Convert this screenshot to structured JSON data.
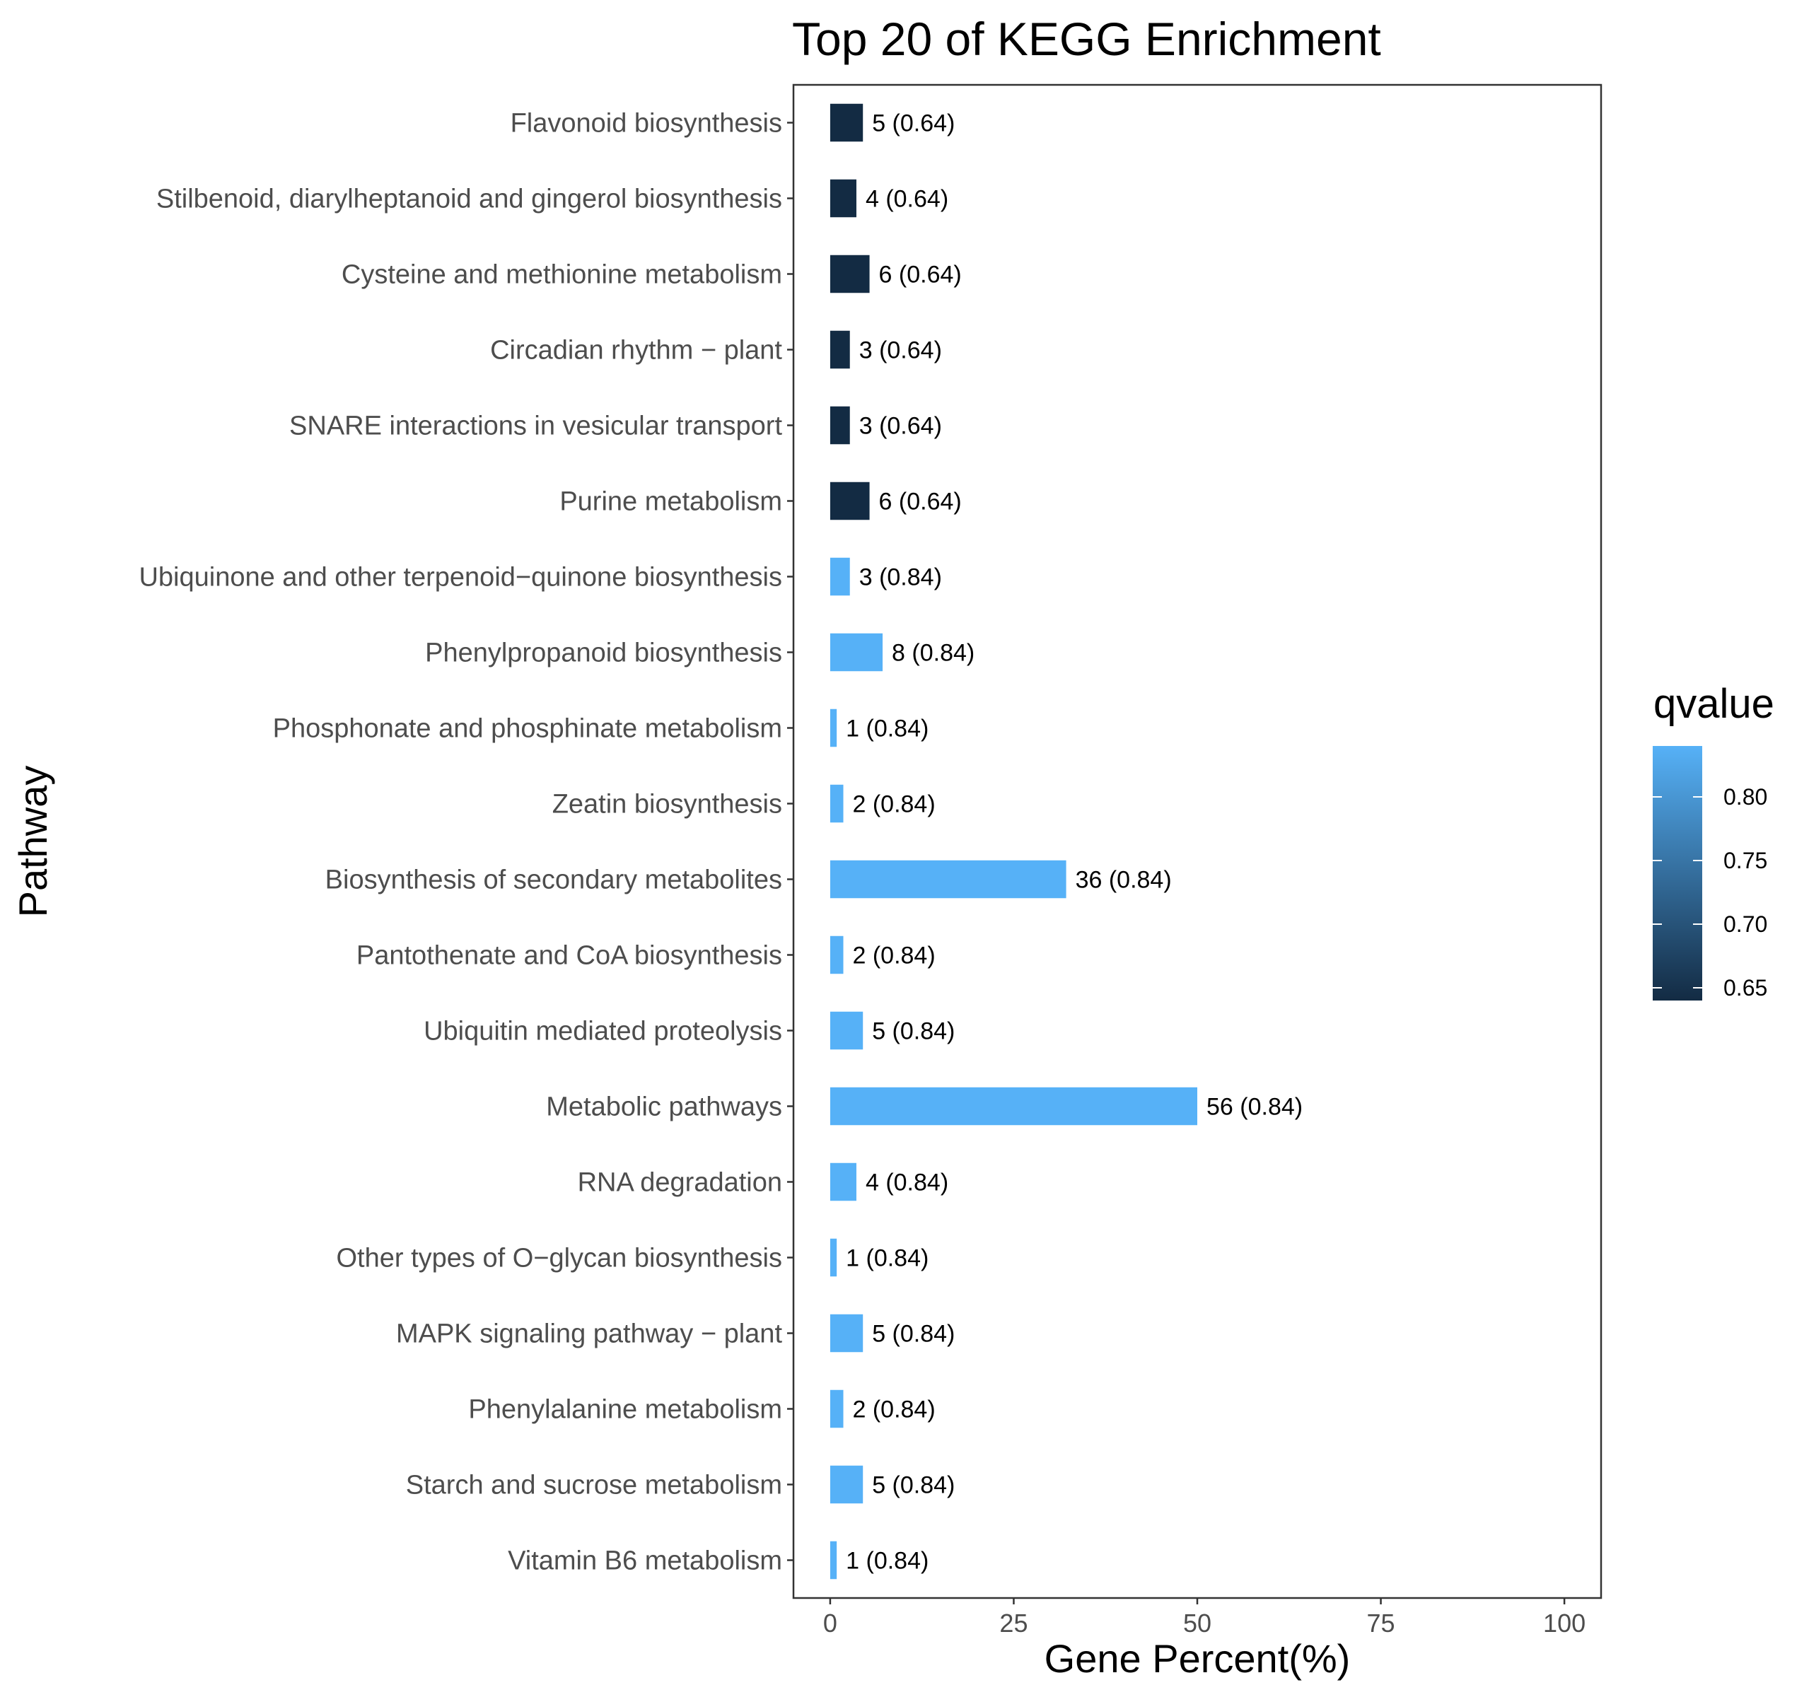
{
  "chart_data": {
    "type": "bar",
    "orientation": "horizontal",
    "title": "Top 20 of KEGG Enrichment",
    "xlabel": "Gene Percent(%)",
    "ylabel": "Pathway",
    "xlim": [
      -5,
      105
    ],
    "xticks": [
      0,
      25,
      50,
      75,
      100
    ],
    "grid": false,
    "categories": [
      "Flavonoid biosynthesis",
      "Stilbenoid, diarylheptanoid and gingerol biosynthesis",
      "Cysteine and methionine metabolism",
      "Circadian rhythm − plant",
      "SNARE interactions in vesicular transport",
      "Purine metabolism",
      "Ubiquinone and other terpenoid−quinone biosynthesis",
      "Phenylpropanoid biosynthesis",
      "Phosphonate and phosphinate metabolism",
      "Zeatin biosynthesis",
      "Biosynthesis of secondary metabolites",
      "Pantothenate and CoA biosynthesis",
      "Ubiquitin mediated proteolysis",
      "Metabolic pathways",
      "RNA degradation",
      "Other types of O−glycan biosynthesis",
      "MAPK signaling pathway − plant",
      "Phenylalanine metabolism",
      "Starch and sucrose metabolism",
      "Vitamin B6 metabolism"
    ],
    "values": [
      4.46,
      3.57,
      5.36,
      2.68,
      2.68,
      5.36,
      2.68,
      7.14,
      0.89,
      1.79,
      32.14,
      1.79,
      4.46,
      50.0,
      3.57,
      0.89,
      4.46,
      1.79,
      4.46,
      0.89
    ],
    "qvalues": [
      0.64,
      0.64,
      0.64,
      0.64,
      0.64,
      0.64,
      0.84,
      0.84,
      0.84,
      0.84,
      0.84,
      0.84,
      0.84,
      0.84,
      0.84,
      0.84,
      0.84,
      0.84,
      0.84,
      0.84
    ],
    "bar_labels": [
      "5 (0.64)",
      "4 (0.64)",
      "6 (0.64)",
      "3 (0.64)",
      "3 (0.64)",
      "6 (0.64)",
      "3 (0.84)",
      "8 (0.84)",
      "1 (0.84)",
      "2 (0.84)",
      "36 (0.84)",
      "2 (0.84)",
      "5 (0.84)",
      "56 (0.84)",
      "4 (0.84)",
      "1 (0.84)",
      "5 (0.84)",
      "2 (0.84)",
      "5 (0.84)",
      "1 (0.84)"
    ],
    "legend": {
      "title": "qvalue",
      "placement": "right",
      "range": [
        0.64,
        0.84
      ],
      "ticks": [
        0.65,
        0.7,
        0.75,
        0.8
      ],
      "tick_labels": [
        "0.65",
        "0.70",
        "0.75",
        "0.80"
      ],
      "color_low": "#132B43",
      "color_high": "#56B1F7"
    }
  }
}
